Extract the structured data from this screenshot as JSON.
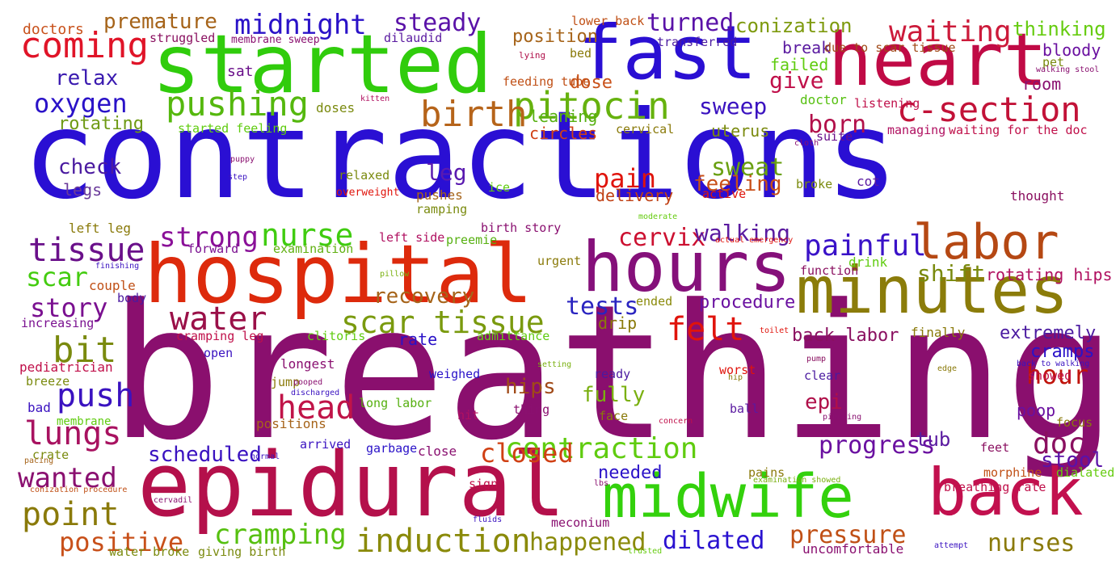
{
  "words": [
    {
      "text": "contractions",
      "color": "#2a0fd3"
    },
    {
      "text": "breathing",
      "color": "#8a0f6e"
    },
    {
      "text": "hospital",
      "color": "#dd2a0c"
    },
    {
      "text": "epidural",
      "color": "#b4104b"
    },
    {
      "text": "started",
      "color": "#30cc0c"
    },
    {
      "text": "fast",
      "color": "#2a0fd3"
    },
    {
      "text": "heart",
      "color": "#c00a45"
    },
    {
      "text": "hours",
      "color": "#85107a"
    },
    {
      "text": "minutes",
      "color": "#8b7c0a"
    },
    {
      "text": "midwife",
      "color": "#33d10c"
    },
    {
      "text": "back",
      "color": "#c2104e"
    },
    {
      "text": "labor",
      "color": "#b54813"
    },
    {
      "text": "pitocin",
      "color": "#66b20e"
    },
    {
      "text": "pushing",
      "color": "#55b80e"
    },
    {
      "text": "birth",
      "color": "#b6641a"
    },
    {
      "text": "c-section",
      "color": "#c21238"
    },
    {
      "text": "coming",
      "color": "#e01428"
    },
    {
      "text": "oxygen",
      "color": "#2a12c8"
    },
    {
      "text": "midnight",
      "color": "#2a12c8"
    },
    {
      "text": "waiting",
      "color": "#cc1a3a"
    },
    {
      "text": "steady",
      "color": "#5a12a8"
    },
    {
      "text": "turned",
      "color": "#5a12a8"
    },
    {
      "text": "conization",
      "color": "#7e9a0e"
    },
    {
      "text": "premature",
      "color": "#a6641a"
    },
    {
      "text": "thinking",
      "color": "#66cc10"
    },
    {
      "text": "relax",
      "color": "#3a1ab0"
    },
    {
      "text": "rotating",
      "color": "#6e9a14"
    },
    {
      "text": "sweep",
      "color": "#3a12c0"
    },
    {
      "text": "born",
      "color": "#b2104a"
    },
    {
      "text": "give",
      "color": "#c0104a"
    },
    {
      "text": "dose",
      "color": "#c9521a"
    },
    {
      "text": "check",
      "color": "#4a1aa0"
    },
    {
      "text": "leg",
      "color": "#5a1ab0"
    },
    {
      "text": "pain",
      "color": "#e0140c"
    },
    {
      "text": "sweat",
      "color": "#6aa012"
    },
    {
      "text": "feeling",
      "color": "#c8501a"
    },
    {
      "text": "legs",
      "color": "#6a3a9a"
    },
    {
      "text": "delivery",
      "color": "#c04014"
    },
    {
      "text": "strong",
      "color": "#8a1098"
    },
    {
      "text": "nurse",
      "color": "#40cc10"
    },
    {
      "text": "tissue",
      "color": "#6a108a"
    },
    {
      "text": "scar",
      "color": "#44cc10"
    },
    {
      "text": "cervix",
      "color": "#cc1030"
    },
    {
      "text": "walking",
      "color": "#5a1aa0"
    },
    {
      "text": "painful",
      "color": "#3a12c8"
    },
    {
      "text": "story",
      "color": "#7a1090"
    },
    {
      "text": "water",
      "color": "#9a1048"
    },
    {
      "text": "scar tissue",
      "color": "#7a9a0e"
    },
    {
      "text": "tests",
      "color": "#2a24c0"
    },
    {
      "text": "felt",
      "color": "#e0140c"
    },
    {
      "text": "bit",
      "color": "#7a8a0e"
    },
    {
      "text": "push",
      "color": "#3a12c0"
    },
    {
      "text": "lungs",
      "color": "#a81260"
    },
    {
      "text": "head",
      "color": "#c01448"
    },
    {
      "text": "hour",
      "color": "#c0140c"
    },
    {
      "text": "shift",
      "color": "#7a8a0e"
    },
    {
      "text": "rotating hips",
      "color": "#b01060"
    },
    {
      "text": "extremely",
      "color": "#4a1aa0"
    },
    {
      "text": "cramps",
      "color": "#2a12c8"
    },
    {
      "text": "progress",
      "color": "#6a10a0"
    },
    {
      "text": "doc",
      "color": "#8a1060"
    },
    {
      "text": "contraction",
      "color": "#60cc10"
    },
    {
      "text": "closed",
      "color": "#d04014"
    },
    {
      "text": "wanted",
      "color": "#8a1070"
    },
    {
      "text": "point",
      "color": "#8a7a0a"
    },
    {
      "text": "positive",
      "color": "#c8501a"
    },
    {
      "text": "cramping",
      "color": "#56c010"
    },
    {
      "text": "induction",
      "color": "#8a8a0a"
    },
    {
      "text": "happened",
      "color": "#8a8a0a"
    },
    {
      "text": "dilated",
      "color": "#2a12d0"
    },
    {
      "text": "pressure",
      "color": "#c05016"
    },
    {
      "text": "nurses",
      "color": "#8a7a0a"
    },
    {
      "text": "stool",
      "color": "#5a12a8"
    },
    {
      "text": "recovery",
      "color": "#a6641a"
    },
    {
      "text": "procedure",
      "color": "#6a10a0"
    },
    {
      "text": "back labor",
      "color": "#8a1060"
    },
    {
      "text": "rate",
      "color": "#2a12c8"
    },
    {
      "text": "drip",
      "color": "#8a7a0a"
    },
    {
      "text": "fully",
      "color": "#7ab010"
    },
    {
      "text": "hips",
      "color": "#a04a18"
    },
    {
      "text": "epi",
      "color": "#b0104a"
    },
    {
      "text": "scheduled",
      "color": "#3a12c0"
    },
    {
      "text": "needed",
      "color": "#2a12c8"
    },
    {
      "text": "tub",
      "color": "#5a1aa0"
    },
    {
      "text": "poop",
      "color": "#6a10a0"
    },
    {
      "text": "leaning",
      "color": "#56b010"
    },
    {
      "text": "position",
      "color": "#a6641a"
    },
    {
      "text": "break",
      "color": "#5a1aa0"
    },
    {
      "text": "failed",
      "color": "#60cc10"
    },
    {
      "text": "bloody",
      "color": "#6a10a0"
    },
    {
      "text": "room",
      "color": "#8a1070"
    },
    {
      "text": "uterus",
      "color": "#7a8a0e"
    },
    {
      "text": "circles",
      "color": "#d04014"
    },
    {
      "text": "doctors",
      "color": "#c8501a"
    },
    {
      "text": "struggled",
      "color": "#8a1060"
    },
    {
      "text": "membrane sweep",
      "color": "#8a1070"
    },
    {
      "text": "dilaudid",
      "color": "#5a1aa0"
    },
    {
      "text": "lower back",
      "color": "#c05016"
    },
    {
      "text": "transferred",
      "color": "#4a1aa0"
    },
    {
      "text": "due to scar tissue",
      "color": "#a04a18"
    },
    {
      "text": "pet",
      "color": "#7a8a0e"
    },
    {
      "text": "walking stool",
      "color": "#8a1070"
    },
    {
      "text": "sat",
      "color": "#6a108a"
    },
    {
      "text": "lying",
      "color": "#b0104a"
    },
    {
      "text": "bed",
      "color": "#8a7a0a"
    },
    {
      "text": "feeding tube",
      "color": "#c05016"
    },
    {
      "text": "doses",
      "color": "#7a8a0e"
    },
    {
      "text": "kitten",
      "color": "#b01060"
    },
    {
      "text": "started feeling",
      "color": "#60cc10"
    },
    {
      "text": "doctor",
      "color": "#56c010"
    },
    {
      "text": "listening",
      "color": "#c0104a"
    },
    {
      "text": "cervical",
      "color": "#8a7a0a"
    },
    {
      "text": "managing",
      "color": "#b01060"
    },
    {
      "text": "waiting for the doc",
      "color": "#c0104a"
    },
    {
      "text": "suite",
      "color": "#6a108a"
    },
    {
      "text": "cloth",
      "color": "#8a1070"
    },
    {
      "text": "puppy",
      "color": "#8a1070"
    },
    {
      "text": "step",
      "color": "#3a12c0"
    },
    {
      "text": "relaxed",
      "color": "#7a8a0e"
    },
    {
      "text": "overweight",
      "color": "#e0140c"
    },
    {
      "text": "ice",
      "color": "#60cc10"
    },
    {
      "text": "pushes",
      "color": "#a6641a"
    },
    {
      "text": "ramping",
      "color": "#7a8a0e"
    },
    {
      "text": "active",
      "color": "#e0140c"
    },
    {
      "text": "broke",
      "color": "#7a8a0e"
    },
    {
      "text": "cot",
      "color": "#5a1aa0"
    },
    {
      "text": "thought",
      "color": "#8a1060"
    },
    {
      "text": "moderate",
      "color": "#66cc10"
    },
    {
      "text": "left leg",
      "color": "#8a7a0a"
    },
    {
      "text": "left side",
      "color": "#b01060"
    },
    {
      "text": "birth story",
      "color": "#8a1070"
    },
    {
      "text": "preemie",
      "color": "#56b010"
    },
    {
      "text": "actual emergency",
      "color": "#e0140c"
    },
    {
      "text": "forward",
      "color": "#7a1090"
    },
    {
      "text": "examination",
      "color": "#60b010"
    },
    {
      "text": "urgent",
      "color": "#8a7a0a"
    },
    {
      "text": "function",
      "color": "#8a1060"
    },
    {
      "text": "drink",
      "color": "#60cc10"
    },
    {
      "text": "finishing",
      "color": "#3a12c0"
    },
    {
      "text": "pillow",
      "color": "#7ab010"
    },
    {
      "text": "couple",
      "color": "#c05016"
    },
    {
      "text": "body",
      "color": "#4a1aa0"
    },
    {
      "text": "ended",
      "color": "#8a8a0a"
    },
    {
      "text": "increasing",
      "color": "#7a1090"
    },
    {
      "text": "cramping leg",
      "color": "#c0104a"
    },
    {
      "text": "clitoris",
      "color": "#60cc10"
    },
    {
      "text": "admittance",
      "color": "#60cc10"
    },
    {
      "text": "toilet",
      "color": "#e0140c"
    },
    {
      "text": "finally",
      "color": "#8a7a0a"
    },
    {
      "text": "open",
      "color": "#3a12c0"
    },
    {
      "text": "longest",
      "color": "#8a1070"
    },
    {
      "text": "setting",
      "color": "#7ab010"
    },
    {
      "text": "ready",
      "color": "#4a1aa0"
    },
    {
      "text": "pump",
      "color": "#8a1060"
    },
    {
      "text": "edge",
      "color": "#8a7a0a"
    },
    {
      "text": "back to walking",
      "color": "#3a12c0"
    },
    {
      "text": "pediatrician",
      "color": "#c0104a"
    },
    {
      "text": "breeze",
      "color": "#7a8a0e"
    },
    {
      "text": "jump",
      "color": "#8a7a0a"
    },
    {
      "text": "pooped",
      "color": "#8a1070"
    },
    {
      "text": "discharged",
      "color": "#3a12c0"
    },
    {
      "text": "weighed",
      "color": "#2a12c8"
    },
    {
      "text": "worst",
      "color": "#e0140c"
    },
    {
      "text": "hip",
      "color": "#8a7a0a"
    },
    {
      "text": "clear",
      "color": "#4a1aa0"
    },
    {
      "text": "showed",
      "color": "#c0104a"
    },
    {
      "text": "bad",
      "color": "#3a12c0"
    },
    {
      "text": "long labor",
      "color": "#56b010"
    },
    {
      "text": "thing",
      "color": "#8a1070"
    },
    {
      "text": "face",
      "color": "#8a7a0a"
    },
    {
      "text": "ball",
      "color": "#5a1aa0"
    },
    {
      "text": "pinching",
      "color": "#8a1070"
    },
    {
      "text": "membrane",
      "color": "#60cc10"
    },
    {
      "text": "positions",
      "color": "#a6641a"
    },
    {
      "text": "hit",
      "color": "#b01060"
    },
    {
      "text": "concern",
      "color": "#c0104a"
    },
    {
      "text": "focus",
      "color": "#8a7a0a"
    },
    {
      "text": "crate",
      "color": "#7a8a0e"
    },
    {
      "text": "arrived",
      "color": "#3a12c0"
    },
    {
      "text": "garbage",
      "color": "#2a12c8"
    },
    {
      "text": "close",
      "color": "#8a1070"
    },
    {
      "text": "feet",
      "color": "#8a1060"
    },
    {
      "text": "pacing",
      "color": "#a6641a"
    },
    {
      "text": "normal",
      "color": "#3a12c0"
    },
    {
      "text": "morphine",
      "color": "#c05016"
    },
    {
      "text": "dialated",
      "color": "#66cc10"
    },
    {
      "text": "pains",
      "color": "#8a7a0a"
    },
    {
      "text": "examination showed",
      "color": "#7ab010"
    },
    {
      "text": "conization procedure",
      "color": "#c05016"
    },
    {
      "text": "sign",
      "color": "#c0104a"
    },
    {
      "text": "lbs",
      "color": "#8a1070"
    },
    {
      "text": "breathing rate",
      "color": "#c0104a"
    },
    {
      "text": "cervadil",
      "color": "#8a1070"
    },
    {
      "text": "fluids",
      "color": "#3a12c0"
    },
    {
      "text": "meconium",
      "color": "#8a1070"
    },
    {
      "text": "water broke",
      "color": "#7a8a0e"
    },
    {
      "text": "giving birth",
      "color": "#7a8a0e"
    },
    {
      "text": "trusted",
      "color": "#66cc10"
    },
    {
      "text": "uncomfortable",
      "color": "#8a1070"
    },
    {
      "text": "attempt",
      "color": "#3a12c0"
    }
  ]
}
